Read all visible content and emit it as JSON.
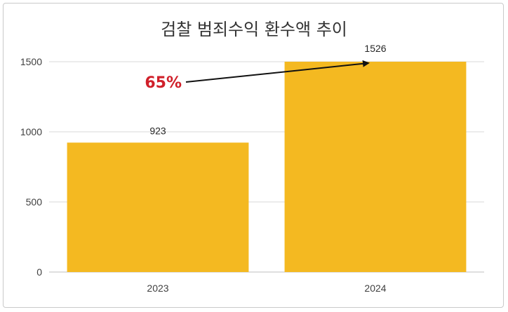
{
  "chart_data": {
    "type": "bar",
    "title": "검찰 범죄수익 환수액 추이",
    "categories": [
      "2023",
      "2024"
    ],
    "values": [
      923,
      1526
    ],
    "data_labels": [
      "923",
      "1526"
    ],
    "xlabel": "",
    "ylabel": "",
    "ylim": [
      0,
      1500
    ],
    "yticks": [
      0,
      500,
      1000,
      1500
    ],
    "grid": true,
    "legend": "none",
    "bar_color": "#F4B921",
    "annotation": {
      "text": "65%",
      "color": "#D0202A",
      "from_category": "2023",
      "to_category": "2024"
    }
  },
  "colors": {
    "gridline": "#d9d9d9",
    "axis": "#bfbfbf",
    "text": "#404040"
  }
}
